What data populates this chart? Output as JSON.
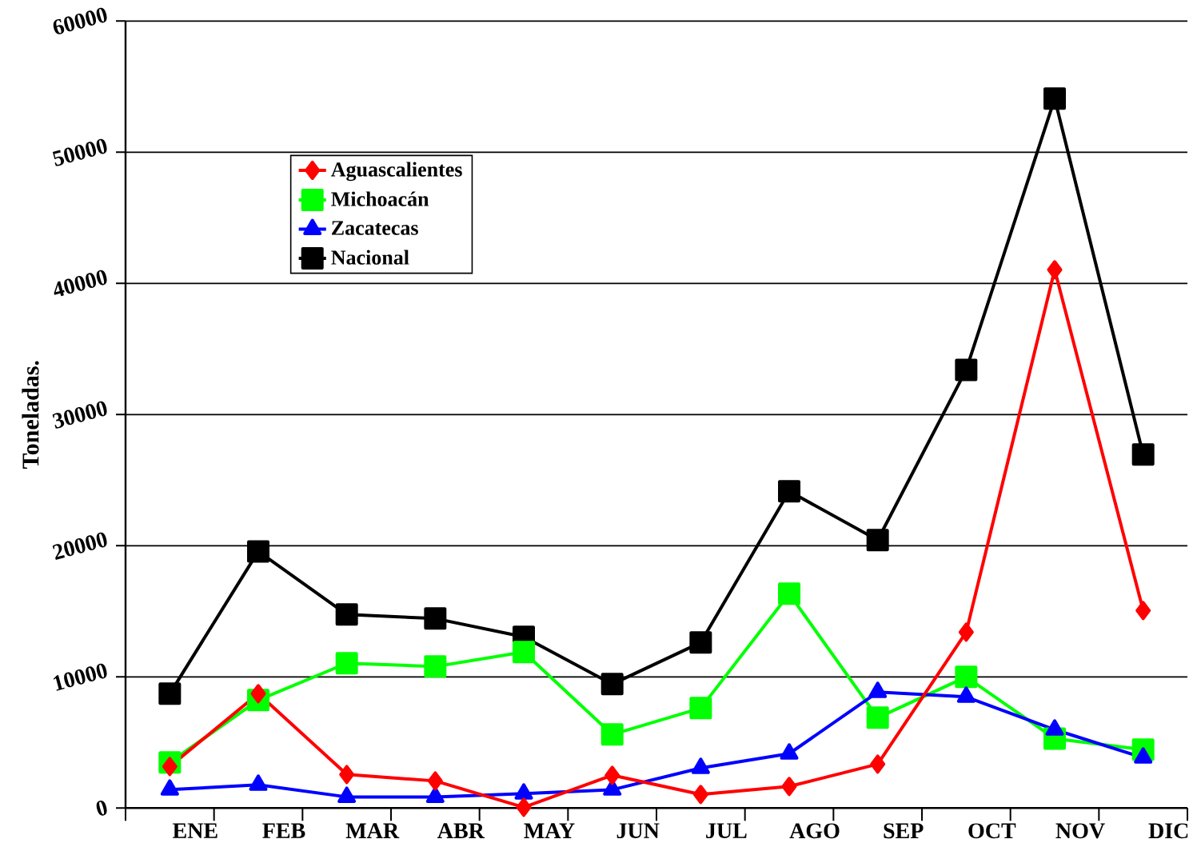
{
  "chart_data": {
    "type": "line",
    "ylabel": "Toneladas.",
    "categories": [
      "ENE",
      "FEB",
      "MAR",
      "ABR",
      "MAY",
      "JUN",
      "JUL",
      "AGO",
      "SEP",
      "OCT",
      "NOV",
      "DIC"
    ],
    "series": [
      {
        "name": "Aguascalientes",
        "color": "#ff0000",
        "marker": "diamond",
        "values": [
          3170,
          8720,
          2560,
          2070,
          60,
          2500,
          1040,
          1650,
          3350,
          13410,
          41040,
          15060
        ]
      },
      {
        "name": "Michoacán",
        "color": "#00ff00",
        "marker": "square",
        "values": [
          3480,
          8230,
          11040,
          10790,
          11890,
          5610,
          7620,
          16340,
          6890,
          10000,
          5300,
          4450
        ]
      },
      {
        "name": "Zacatecas",
        "color": "#0000ff",
        "marker": "triangle",
        "values": [
          1400,
          1770,
          850,
          850,
          1100,
          1400,
          3050,
          4150,
          8840,
          8480,
          5980,
          3840
        ]
      },
      {
        "name": "Nacional",
        "color": "#000000",
        "marker": "square",
        "values": [
          8720,
          19570,
          14760,
          14450,
          13050,
          9450,
          12620,
          24150,
          20430,
          33410,
          54090,
          26950
        ]
      }
    ],
    "ylim": [
      0,
      60000
    ],
    "yticks": [
      0,
      10000,
      20000,
      30000,
      40000,
      50000,
      60000
    ],
    "grid": "y",
    "legend": "top left"
  }
}
